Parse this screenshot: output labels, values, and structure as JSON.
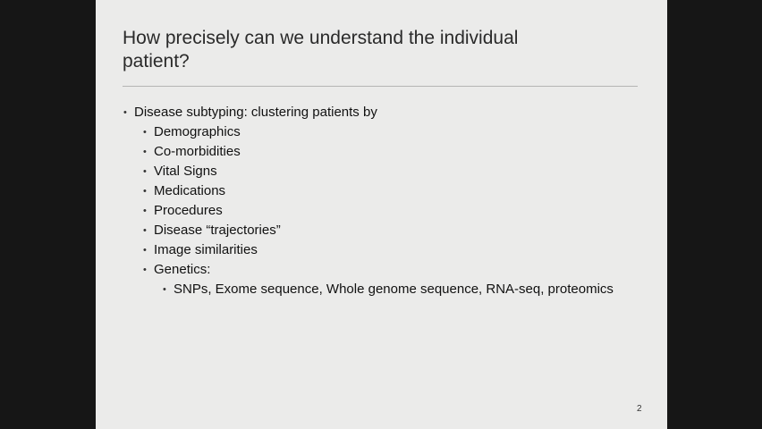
{
  "slide": {
    "title": "How precisely can we understand the individual patient?",
    "bullet_glyph": "•",
    "bullets": [
      {
        "text": "Disease subtyping: clustering patients by",
        "level": 1
      },
      {
        "text": "Demographics",
        "level": 2
      },
      {
        "text": "Co-morbidities",
        "level": 2
      },
      {
        "text": "Vital Signs",
        "level": 2
      },
      {
        "text": "Medications",
        "level": 2
      },
      {
        "text": "Procedures",
        "level": 2
      },
      {
        "text": "Disease “trajectories”",
        "level": 2
      },
      {
        "text": "Image similarities",
        "level": 2
      },
      {
        "text": "Genetics:",
        "level": 2
      },
      {
        "text": "SNPs, Exome sequence, Whole genome sequence, RNA-seq, proteomics",
        "level": 3
      }
    ],
    "page_number": "2"
  }
}
